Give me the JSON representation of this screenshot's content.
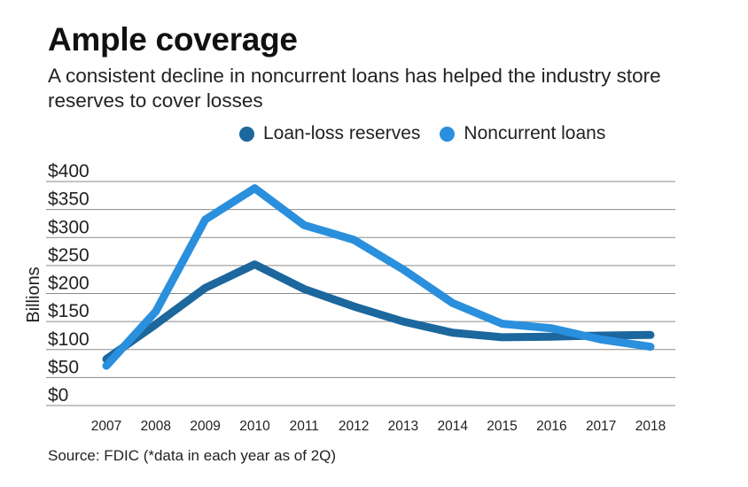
{
  "chart_data": {
    "type": "line",
    "title": "Ample coverage",
    "subtitle": "A consistent decline in noncurrent loans has helped the industry store reserves to cover losses",
    "ylabel": "Billions",
    "xlabel": "",
    "categories": [
      "2007",
      "2008",
      "2009",
      "2010",
      "2011",
      "2012",
      "2013",
      "2014",
      "2015",
      "2016",
      "2017",
      "2018"
    ],
    "yticks": [
      0,
      50,
      100,
      150,
      200,
      250,
      300,
      350,
      400
    ],
    "ytick_labels": [
      "$0",
      "$50",
      "$100",
      "$150",
      "$200",
      "$250",
      "$300",
      "$350",
      "$400"
    ],
    "ylim": [
      0,
      400
    ],
    "series": [
      {
        "name": "Loan-loss reserves",
        "color": "#1b679e",
        "values": [
          83,
          145,
          210,
          252,
          208,
          177,
          150,
          130,
          122,
          123,
          125,
          126
        ]
      },
      {
        "name": "Noncurrent loans",
        "color": "#2a8fdc",
        "values": [
          71,
          168,
          332,
          388,
          322,
          296,
          243,
          183,
          146,
          138,
          118,
          105
        ]
      }
    ],
    "legend_position": "top"
  },
  "source": "Source: FDIC (*data in each year as of 2Q)"
}
